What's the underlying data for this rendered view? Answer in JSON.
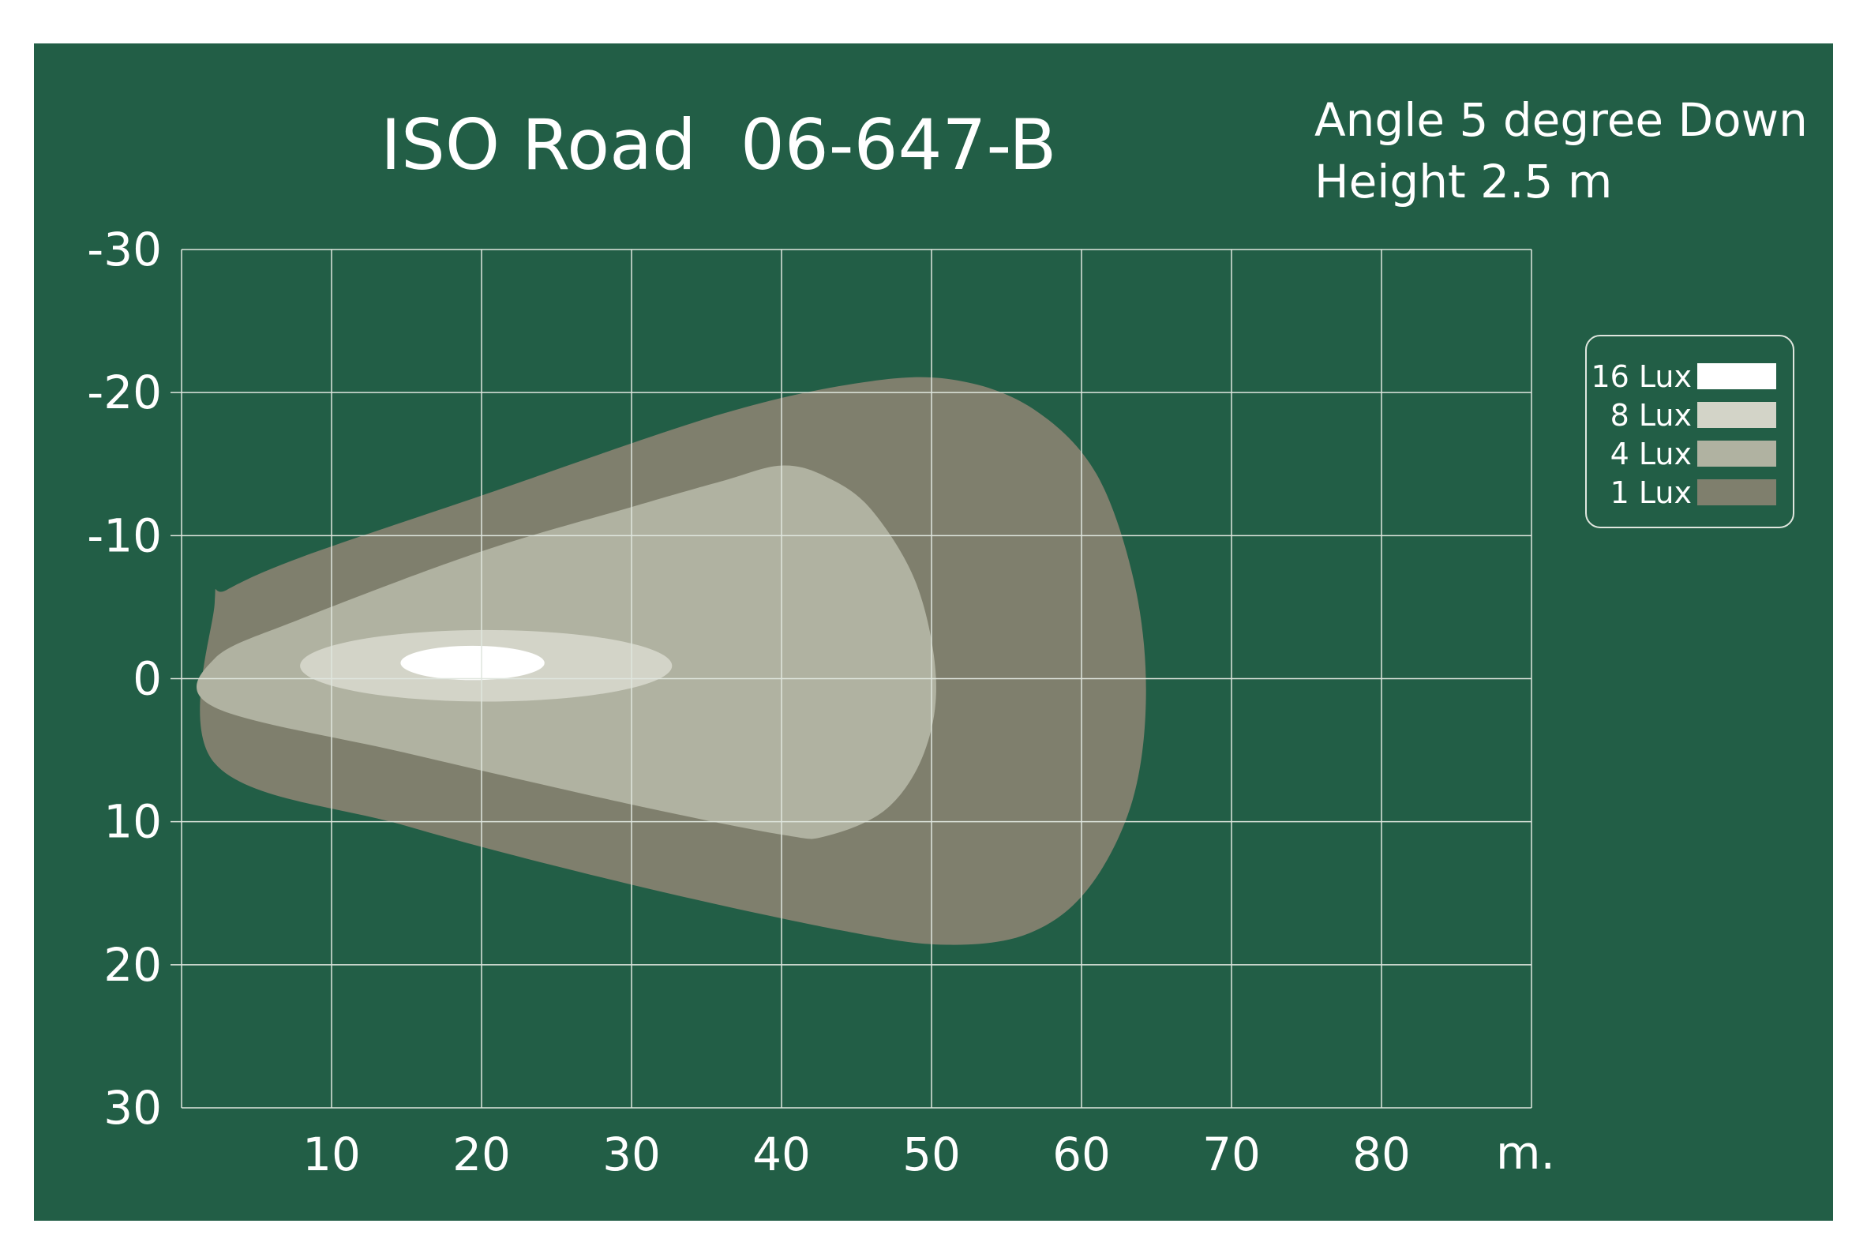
{
  "chart_data": {
    "type": "area",
    "title": "ISO Road  06-647-B",
    "annotations": [
      "Angle 5 degree Down",
      "Height 2.5 m"
    ],
    "xlabel": "m.",
    "ylabel": "",
    "xlim": [
      0,
      90
    ],
    "ylim": [
      -30,
      30
    ],
    "x_ticks": [
      "10",
      "20",
      "30",
      "40",
      "50",
      "60",
      "70",
      "80"
    ],
    "y_ticks": [
      "-30",
      "-20",
      "-10",
      "0",
      "10",
      "20",
      "30"
    ],
    "grid": true,
    "legend_position": "right",
    "series": [
      {
        "name": "1 Lux",
        "color": "#7f7f6d",
        "points": [
          [
            2.2,
            -5.2
          ],
          [
            3,
            -6.2
          ],
          [
            8,
            -8.5
          ],
          [
            20,
            -12.8
          ],
          [
            36,
            -18.5
          ],
          [
            46,
            -20.8
          ],
          [
            52,
            -20.8
          ],
          [
            57,
            -18.7
          ],
          [
            61,
            -14.3
          ],
          [
            63.5,
            -6.8
          ],
          [
            64.3,
            1
          ],
          [
            63.4,
            8.5
          ],
          [
            60.5,
            14.6
          ],
          [
            56.5,
            17.8
          ],
          [
            51,
            18.6
          ],
          [
            44,
            17.6
          ],
          [
            30,
            14.4
          ],
          [
            15,
            10.3
          ],
          [
            2.2,
            5.9
          ]
        ]
      },
      {
        "name": "4 Lux",
        "color": "#b0b2a1",
        "points": [
          [
            2.2,
            -1.4
          ],
          [
            8,
            -4.2
          ],
          [
            20,
            -8.9
          ],
          [
            30,
            -12
          ],
          [
            36,
            -13.8
          ],
          [
            40,
            -14.9
          ],
          [
            43,
            -14.1
          ],
          [
            46,
            -11.8
          ],
          [
            49,
            -6.6
          ],
          [
            50.3,
            0
          ],
          [
            49.5,
            5.2
          ],
          [
            47,
            9.1
          ],
          [
            43,
            11
          ],
          [
            40,
            10.9
          ],
          [
            30,
            8.8
          ],
          [
            15,
            5.2
          ],
          [
            2.2,
            2
          ]
        ]
      },
      {
        "name": "8 Lux",
        "color": "#d3d4c8",
        "ellipse": {
          "cx": 20.3,
          "cy": -0.9,
          "rx": 12.4,
          "ry": 2.5
        }
      },
      {
        "name": "16 Lux",
        "color": "#ffffff",
        "ellipse": {
          "cx": 19.4,
          "cy": -1.1,
          "rx": 4.8,
          "ry": 1.2
        }
      }
    ]
  },
  "legend": {
    "items": [
      {
        "label": "16 Lux",
        "color": "#ffffff"
      },
      {
        "label": "8 Lux",
        "color": "#d3d4c8"
      },
      {
        "label": "4 Lux",
        "color": "#b0b2a1"
      },
      {
        "label": "1 Lux",
        "color": "#7f7f6d"
      }
    ]
  },
  "colors": {
    "background": "#225e46",
    "grid": "#dfe6de",
    "text": "#ffffff"
  }
}
